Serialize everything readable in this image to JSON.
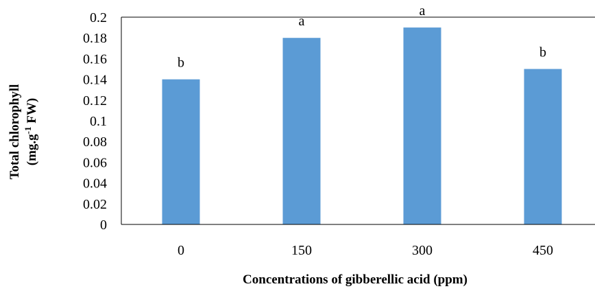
{
  "chart_data": {
    "type": "bar",
    "categories": [
      "0",
      "150",
      "300",
      "450"
    ],
    "values": [
      0.14,
      0.18,
      0.19,
      0.15
    ],
    "significance_labels": [
      "b",
      "a",
      "a",
      "b"
    ],
    "title": "",
    "xlabel": "Concentrations  of gibberellic acid (ppm)",
    "ylabel": {
      "line1": "Total  chlorophyll",
      "line2_prefix": "(mg.g",
      "line2_sup": "-1",
      "line2_suffix": " FW)"
    },
    "ylim": [
      0,
      0.2
    ],
    "yticks": [
      "0",
      "0.02",
      "0.04",
      "0.06",
      "0.08",
      "0.1",
      "0.12",
      "0.14",
      "0.16",
      "0.18",
      "0.2"
    ],
    "bar_color": "#5B9BD5",
    "grid": false,
    "legend": "none"
  }
}
